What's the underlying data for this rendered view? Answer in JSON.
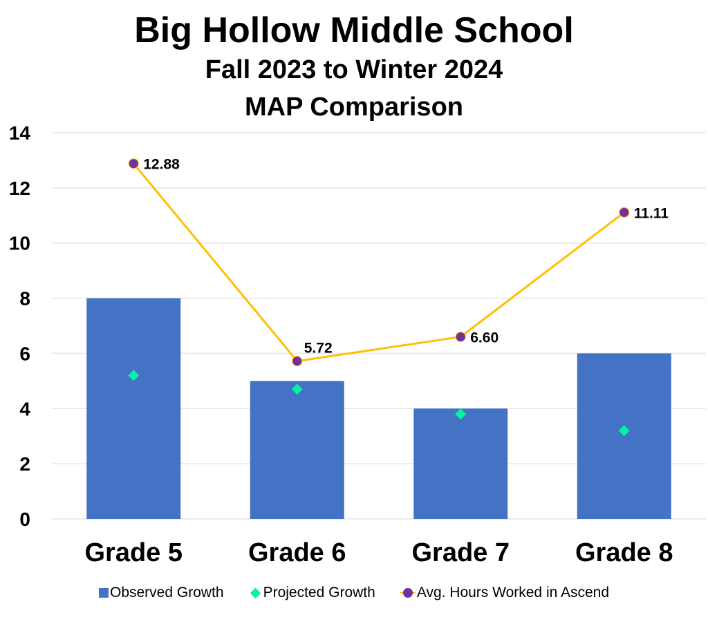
{
  "chart_data": {
    "type": "bar",
    "title": "Big Hollow Middle School",
    "subtitle": [
      "Fall 2023 to Winter 2024",
      "MAP  Comparison"
    ],
    "categories": [
      "Grade 5",
      "Grade 6",
      "Grade 7",
      "Grade 8"
    ],
    "ylim": [
      0,
      14
    ],
    "yticks": [
      0,
      2,
      4,
      6,
      8,
      10,
      12,
      14
    ],
    "grid": true,
    "legend_position": "bottom",
    "series": [
      {
        "name": "Observed Growth",
        "type": "bar",
        "color": "#4472c4",
        "values": [
          8,
          5,
          4,
          6
        ]
      },
      {
        "name": "Projected Growth",
        "type": "scatter",
        "marker": "diamond",
        "color": "#00f5a0",
        "values": [
          5.2,
          4.7,
          3.8,
          3.2
        ]
      },
      {
        "name": "Avg. Hours Worked in Ascend",
        "type": "line",
        "color": "#ffc000",
        "marker_color": "#7030a0",
        "values": [
          12.88,
          5.72,
          6.6,
          11.11
        ],
        "labels": [
          "12.88",
          "5.72",
          "6.60",
          "11.11"
        ]
      }
    ]
  }
}
